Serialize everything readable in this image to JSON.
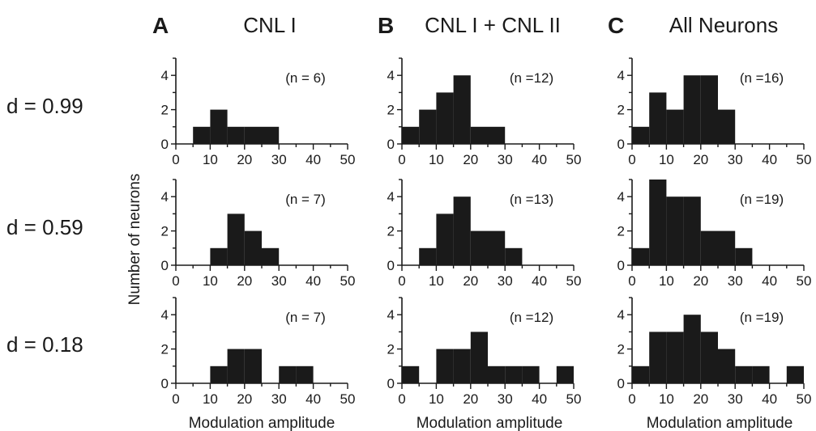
{
  "panel_letters": [
    "A",
    "B",
    "C"
  ],
  "column_titles": [
    "CNL I",
    "CNL I + CNL II",
    "All Neurons"
  ],
  "row_labels": [
    "d = 0.99",
    "d = 0.59",
    "d = 0.18"
  ],
  "y_axis_label": "Number of neurons",
  "x_axis_label": "Modulation amplitude",
  "colors": {
    "bar": "#1a1a1a",
    "axis": "#1a1a1a",
    "background": "#ffffff"
  },
  "chart_data": {
    "type": "bar",
    "layout": "grid 3 rows x 3 columns of histograms",
    "bin_width": 5,
    "bin_starts": [
      0,
      5,
      10,
      15,
      20,
      25,
      30,
      35,
      40,
      45
    ],
    "xlim": [
      0,
      50
    ],
    "ylim": [
      0,
      5
    ],
    "x_ticks": [
      0,
      10,
      20,
      30,
      40,
      50
    ],
    "y_ticks": [
      0,
      2,
      4
    ],
    "xlabel": "Modulation amplitude",
    "ylabel": "Number of neurons",
    "grid": false,
    "panels": [
      {
        "row": 0,
        "col": 0,
        "n_label": "(n = 6)",
        "counts": [
          0,
          1,
          2,
          1,
          1,
          1,
          0,
          0,
          0,
          0
        ]
      },
      {
        "row": 0,
        "col": 1,
        "n_label": "(n =12)",
        "counts": [
          1,
          2,
          3,
          4,
          1,
          1,
          0,
          0,
          0,
          0
        ]
      },
      {
        "row": 0,
        "col": 2,
        "n_label": "(n =16)",
        "counts": [
          1,
          3,
          2,
          4,
          4,
          2,
          0,
          0,
          0,
          0
        ]
      },
      {
        "row": 1,
        "col": 0,
        "n_label": "(n = 7)",
        "counts": [
          0,
          0,
          1,
          3,
          2,
          1,
          0,
          0,
          0,
          0
        ]
      },
      {
        "row": 1,
        "col": 1,
        "n_label": "(n =13)",
        "counts": [
          0,
          1,
          3,
          4,
          2,
          2,
          1,
          0,
          0,
          0
        ]
      },
      {
        "row": 1,
        "col": 2,
        "n_label": "(n =19)",
        "counts": [
          1,
          5,
          4,
          4,
          2,
          2,
          1,
          0,
          0,
          0
        ]
      },
      {
        "row": 2,
        "col": 0,
        "n_label": "(n = 7)",
        "counts": [
          0,
          0,
          1,
          2,
          2,
          0,
          1,
          1,
          0,
          0
        ]
      },
      {
        "row": 2,
        "col": 1,
        "n_label": "(n =12)",
        "counts": [
          1,
          0,
          2,
          2,
          3,
          1,
          1,
          1,
          0,
          1
        ]
      },
      {
        "row": 2,
        "col": 2,
        "n_label": "(n =19)",
        "counts": [
          1,
          3,
          3,
          4,
          3,
          2,
          1,
          1,
          0,
          1
        ]
      }
    ]
  }
}
